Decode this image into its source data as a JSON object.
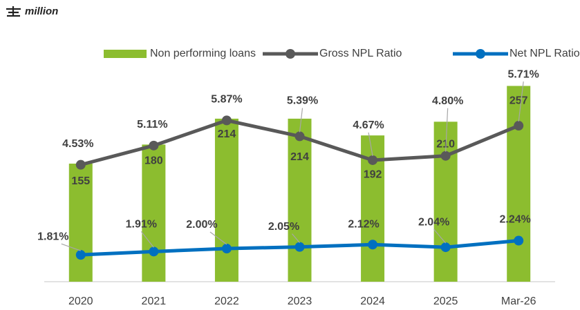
{
  "chart_data": {
    "type": "bar-line",
    "unit": "million",
    "categories": [
      "2020",
      "2021",
      "2022",
      "2023",
      "2024",
      "2025",
      "Mar-26"
    ],
    "ylim": [
      0,
      300
    ],
    "y2lim": [
      1,
      7.9
    ],
    "series": [
      {
        "name": "Non performing loans",
        "type": "bar",
        "color": "#8cbd2f",
        "values": [
          155,
          180,
          214,
          214,
          192,
          210,
          257
        ]
      },
      {
        "name": "Gross NPL Ratio",
        "type": "line",
        "axis": "y2",
        "color": "#595959",
        "values": [
          4.53,
          5.11,
          5.87,
          5.39,
          4.67,
          4.8,
          5.71
        ],
        "value_labels": [
          "4.53%",
          "5.11%",
          "5.87%",
          "5.39%",
          "4.67%",
          "4.80%",
          "5.71%"
        ]
      },
      {
        "name": "Net NPL Ratio",
        "type": "line",
        "axis": "y2",
        "color": "#0070c0",
        "values": [
          1.81,
          1.91,
          2.0,
          2.05,
          2.12,
          2.04,
          2.24
        ],
        "value_labels": [
          "1.81%",
          "1.91%",
          "2.00%",
          "2.05%",
          "2.12%",
          "2.04%",
          "2.24%"
        ]
      }
    ],
    "legend": "top"
  }
}
